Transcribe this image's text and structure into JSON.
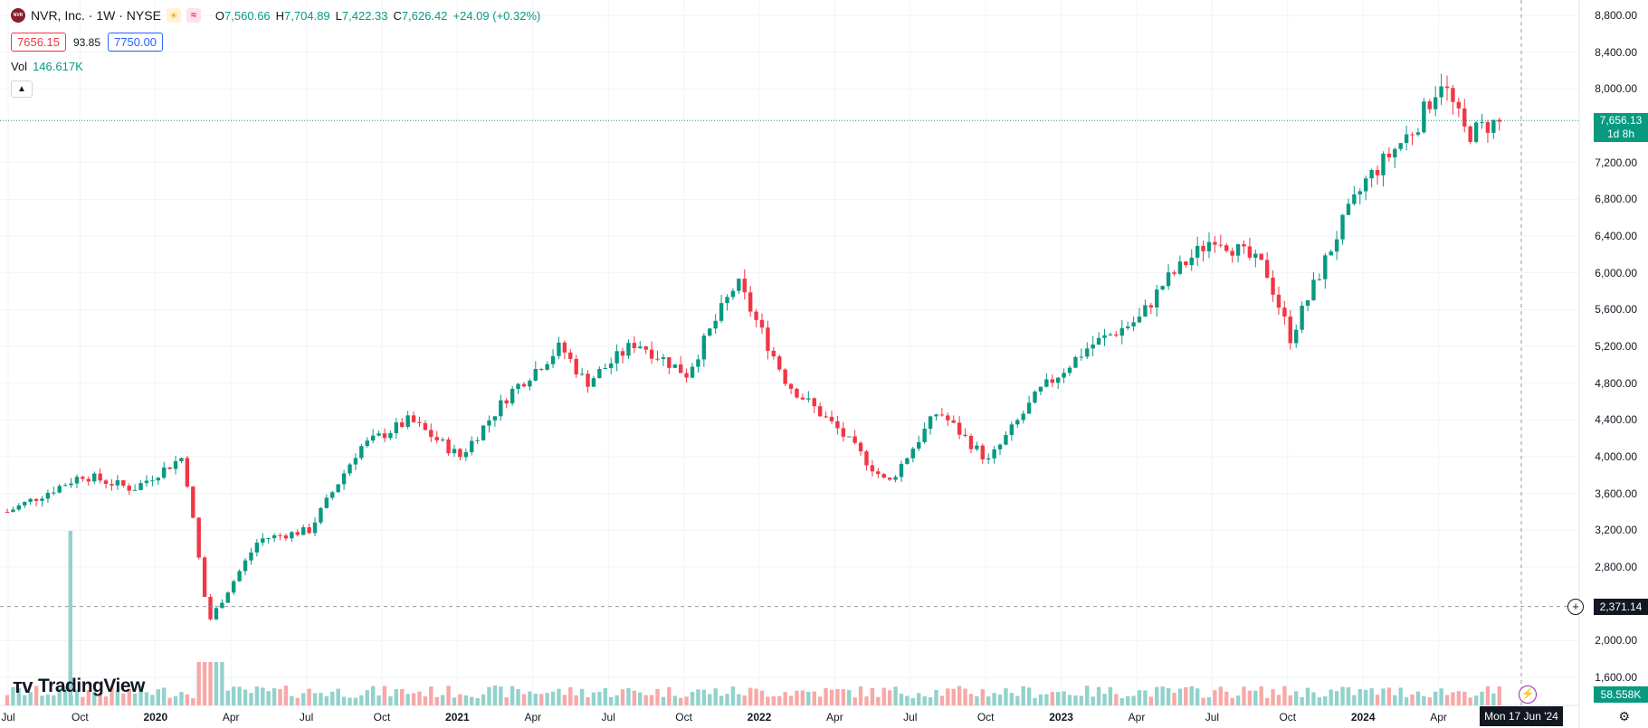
{
  "legend": {
    "symbol_logo": "NVR",
    "title": "NVR, Inc. · 1W · NYSE",
    "open_label": "O",
    "open": "7,560.66",
    "high_label": "H",
    "high": "7,704.89",
    "low_label": "L",
    "low": "7,422.33",
    "close_label": "C",
    "close": "7,626.42",
    "change": "+24.09 (+0.32%)",
    "bid": "7656.15",
    "spread": "93.85",
    "ask": "7750.00",
    "vol_label": "Vol",
    "vol_value": "146.617K"
  },
  "price_axis": {
    "labels": [
      "8,800.00",
      "8,400.00",
      "8,000.00",
      "7,200.00",
      "6,800.00",
      "6,400.00",
      "6,000.00",
      "5,600.00",
      "5,200.00",
      "4,800.00",
      "4,400.00",
      "4,000.00",
      "3,600.00",
      "3,200.00",
      "2,800.00",
      "2,000.00",
      "1,600.00"
    ],
    "last_price": "7,656.13",
    "countdown": "1d 8h",
    "crosshair_price": "2,371.14",
    "last_volume": "58.558K"
  },
  "time_axis": {
    "labels": [
      {
        "text": "Jul",
        "year": false
      },
      {
        "text": "Oct",
        "year": false
      },
      {
        "text": "2020",
        "year": true
      },
      {
        "text": "Apr",
        "year": false
      },
      {
        "text": "Jul",
        "year": false
      },
      {
        "text": "Oct",
        "year": false
      },
      {
        "text": "2021",
        "year": true
      },
      {
        "text": "Apr",
        "year": false
      },
      {
        "text": "Jul",
        "year": false
      },
      {
        "text": "Oct",
        "year": false
      },
      {
        "text": "2022",
        "year": true
      },
      {
        "text": "Apr",
        "year": false
      },
      {
        "text": "Jul",
        "year": false
      },
      {
        "text": "Oct",
        "year": false
      },
      {
        "text": "2023",
        "year": true
      },
      {
        "text": "Apr",
        "year": false
      },
      {
        "text": "Jul",
        "year": false
      },
      {
        "text": "Oct",
        "year": false
      },
      {
        "text": "2024",
        "year": true
      },
      {
        "text": "Apr",
        "year": false
      }
    ],
    "crosshair_date": "Mon 17 Jun '24"
  },
  "branding": {
    "name": "TradingView"
  },
  "colors": {
    "up": "#089981",
    "down": "#f23645",
    "vol_up": "#92d2cc",
    "vol_down": "#f7a9a7"
  },
  "chart_data": {
    "type": "candlestick",
    "interval": "1W",
    "x_range": [
      "2019-07",
      "2024-06"
    ],
    "ylim": [
      1600,
      8800
    ],
    "anchors": [
      {
        "x": "2019-07",
        "y": 3400
      },
      {
        "x": "2019-10",
        "y": 3800
      },
      {
        "x": "2019-12",
        "y": 3650
      },
      {
        "x": "2020-02",
        "y": 4000
      },
      {
        "x": "2020-03",
        "y": 2200
      },
      {
        "x": "2020-05",
        "y": 3100
      },
      {
        "x": "2020-07",
        "y": 3200
      },
      {
        "x": "2020-09",
        "y": 4100
      },
      {
        "x": "2020-11",
        "y": 4400
      },
      {
        "x": "2021-01",
        "y": 4000
      },
      {
        "x": "2021-03",
        "y": 4700
      },
      {
        "x": "2021-05",
        "y": 5200
      },
      {
        "x": "2021-06",
        "y": 4800
      },
      {
        "x": "2021-08",
        "y": 5250
      },
      {
        "x": "2021-10",
        "y": 4900
      },
      {
        "x": "2021-12",
        "y": 5900
      },
      {
        "x": "2022-02",
        "y": 4800
      },
      {
        "x": "2022-04",
        "y": 4300
      },
      {
        "x": "2022-06",
        "y": 3700
      },
      {
        "x": "2022-08",
        "y": 4500
      },
      {
        "x": "2022-10",
        "y": 3950
      },
      {
        "x": "2022-12",
        "y": 4700
      },
      {
        "x": "2023-02",
        "y": 5200
      },
      {
        "x": "2023-04",
        "y": 5500
      },
      {
        "x": "2023-05",
        "y": 5900
      },
      {
        "x": "2023-07",
        "y": 6400
      },
      {
        "x": "2023-09",
        "y": 6050
      },
      {
        "x": "2023-10",
        "y": 5300
      },
      {
        "x": "2023-12",
        "y": 6500
      },
      {
        "x": "2024-01",
        "y": 7000
      },
      {
        "x": "2024-03",
        "y": 7600
      },
      {
        "x": "2024-04",
        "y": 8100
      },
      {
        "x": "2024-05",
        "y": 7500
      },
      {
        "x": "2024-06",
        "y": 7626
      }
    ],
    "volume_spike": {
      "x": "2019-09",
      "value": "large"
    }
  }
}
